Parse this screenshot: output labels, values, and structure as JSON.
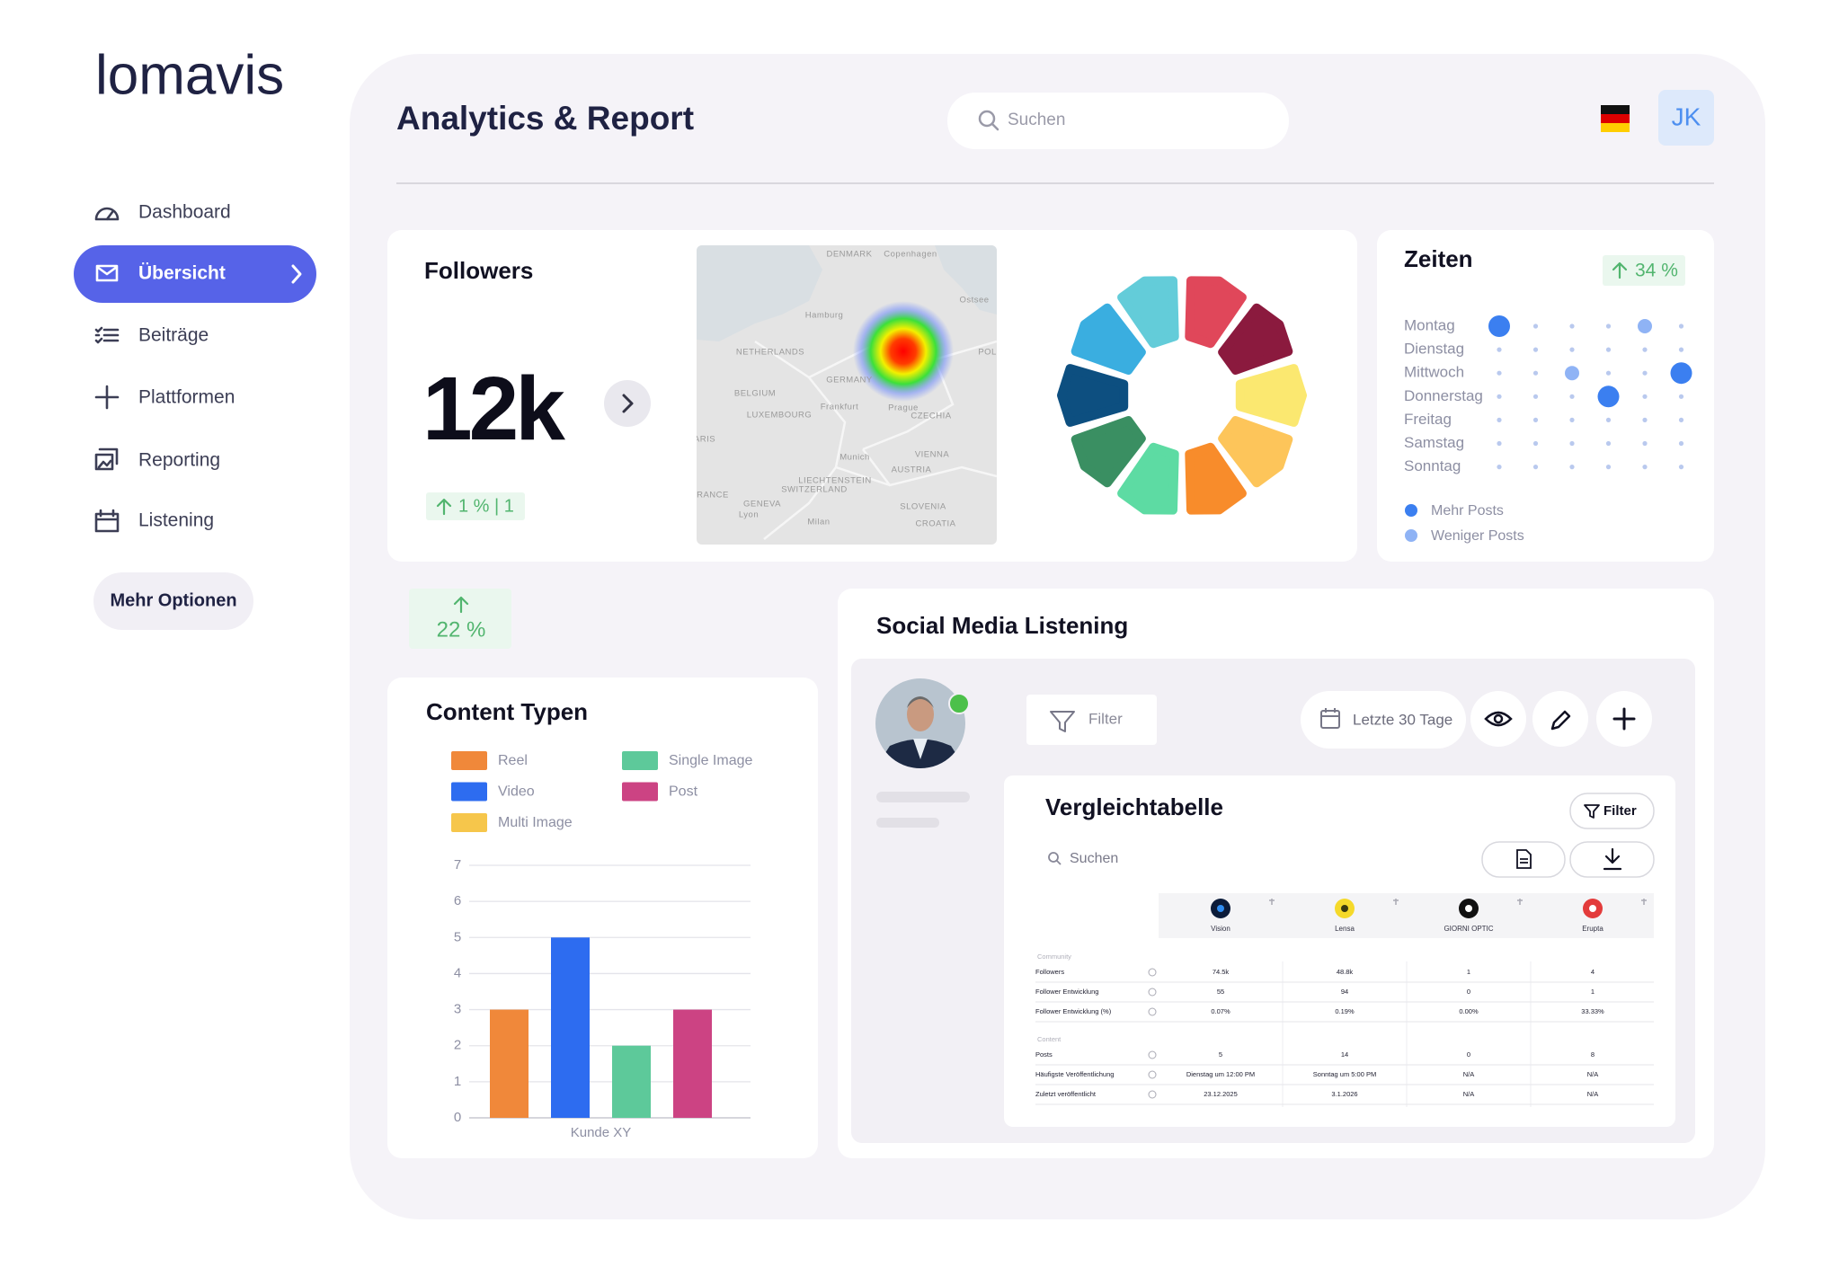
{
  "sidebar": {
    "logo": "lomavis",
    "nav": [
      "Dashboard",
      "Übersicht",
      "Beiträge",
      "Plattformen",
      "Reporting",
      "Listening"
    ],
    "more": "Mehr Optionen"
  },
  "header": {
    "title": "Analytics & Report",
    "search": "Suchen",
    "avatar": "JK"
  },
  "followers": {
    "title": "Followers",
    "value": "12k",
    "change": "1 % | 1",
    "map_labels": [
      "DENMARK",
      "Copenhagen",
      "Hamburg",
      "NETHERLANDS",
      "GERMANY",
      "BELGIUM",
      "LUXEMBOURG",
      "Frankfurt",
      "Prague",
      "CZECHIA",
      "Munich",
      "VIENNA",
      "AUSTRIA",
      "LIECHTENSTEIN",
      "SWITZERLAND",
      "GENEVA",
      "Lyon",
      "Milan",
      "SLOVENIA",
      "CROATIA",
      "Ostsee",
      "POLA",
      "ARIS",
      "RANCE"
    ]
  },
  "zeiten": {
    "title": "Zeiten",
    "change": "34 %",
    "days": [
      "Montag",
      "Dienstag",
      "Mittwoch",
      "Donnerstag",
      "Freitag",
      "Samstag",
      "Sonntag"
    ],
    "activity": [
      [
        2,
        0,
        0,
        0,
        1,
        0
      ],
      [
        0,
        0,
        0,
        0,
        0,
        0
      ],
      [
        0,
        0,
        1,
        0,
        0,
        2
      ],
      [
        0,
        0,
        0,
        2,
        0,
        0
      ],
      [
        0,
        0,
        0,
        0,
        0,
        0
      ],
      [
        0,
        0,
        0,
        0,
        0,
        0
      ],
      [
        0,
        0,
        0,
        0,
        0,
        0
      ]
    ],
    "legend": [
      {
        "name": "Mehr Posts",
        "color": "#3b7ff0"
      },
      {
        "name": "Weniger Posts",
        "color": "#8fb3f5"
      }
    ]
  },
  "badge": "22 %",
  "content_types": {
    "type": "bar",
    "title": "Content Typen",
    "categories": [
      "Kunde XY"
    ],
    "series": [
      {
        "name": "Reel",
        "color": "#f0883a",
        "values": [
          3
        ]
      },
      {
        "name": "Video",
        "color": "#2d6cf0",
        "values": [
          5
        ]
      },
      {
        "name": "Multi Image",
        "color": "#f6c64b",
        "values": [
          null
        ]
      },
      {
        "name": "Single Image",
        "color": "#5dc99a",
        "values": [
          2
        ]
      },
      {
        "name": "Post",
        "color": "#cc4383",
        "values": [
          3
        ]
      }
    ],
    "ylim": [
      0,
      7
    ],
    "yticks": [
      0,
      1,
      2,
      3,
      4,
      5,
      6,
      7
    ],
    "grid": true
  },
  "listening": {
    "title": "Social Media Listening",
    "filter": "Filter",
    "period": "Letzte 30 Tage"
  },
  "comparison": {
    "title": "Vergleichtabelle",
    "filter": "Filter",
    "search": "Suchen",
    "columns": [
      "Vision",
      "Lensa",
      "GIORNI OPTIC",
      "Erupta"
    ],
    "sections": [
      {
        "title": "Community",
        "rows": [
          {
            "label": "Followers",
            "values": [
              "74.5k",
              "48.8k",
              "1",
              "4"
            ]
          },
          {
            "label": "Follower Entwicklung",
            "values": [
              "55",
              "94",
              "0",
              "1"
            ]
          },
          {
            "label": "Follower Entwicklung (%)",
            "values": [
              "0.07%",
              "0.19%",
              "0.00%",
              "33.33%"
            ]
          }
        ]
      },
      {
        "title": "Content",
        "rows": [
          {
            "label": "Posts",
            "values": [
              "5",
              "14",
              "0",
              "8"
            ]
          },
          {
            "label": "Häufigste Veröffentlichung",
            "values": [
              "Dienstag um 12:00 PM",
              "Sonntag um 5:00 PM",
              "N/A",
              "N/A"
            ]
          },
          {
            "label": "Zuletzt veröffentlicht",
            "values": [
              "23.12.2025",
              "3.1.2026",
              "N/A",
              "N/A"
            ]
          }
        ]
      }
    ]
  }
}
